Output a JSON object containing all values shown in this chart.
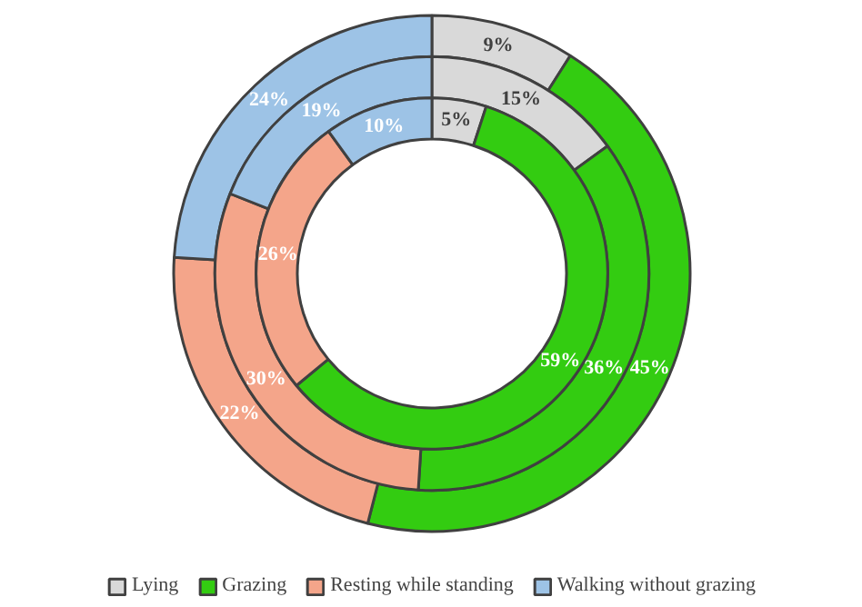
{
  "chart_data": {
    "type": "donut",
    "categories": [
      "Lying",
      "Grazing",
      "Resting while standing",
      "Walking without grazing"
    ],
    "colors": [
      "#d9d9d9",
      "#33cc11",
      "#f4a58a",
      "#9dc3e6"
    ],
    "series": [
      {
        "values": [
          9,
          45,
          22,
          24
        ],
        "value_labels": [
          "9%",
          "45%",
          "22%",
          "24%"
        ]
      },
      {
        "values": [
          15,
          36,
          30,
          19
        ],
        "value_labels": [
          "15%",
          "36%",
          "30%",
          "19%"
        ]
      },
      {
        "values": [
          5,
          59,
          26,
          10
        ],
        "value_labels": [
          "5%",
          "59%",
          "26%",
          "10%"
        ]
      }
    ],
    "legend": "bottom"
  }
}
